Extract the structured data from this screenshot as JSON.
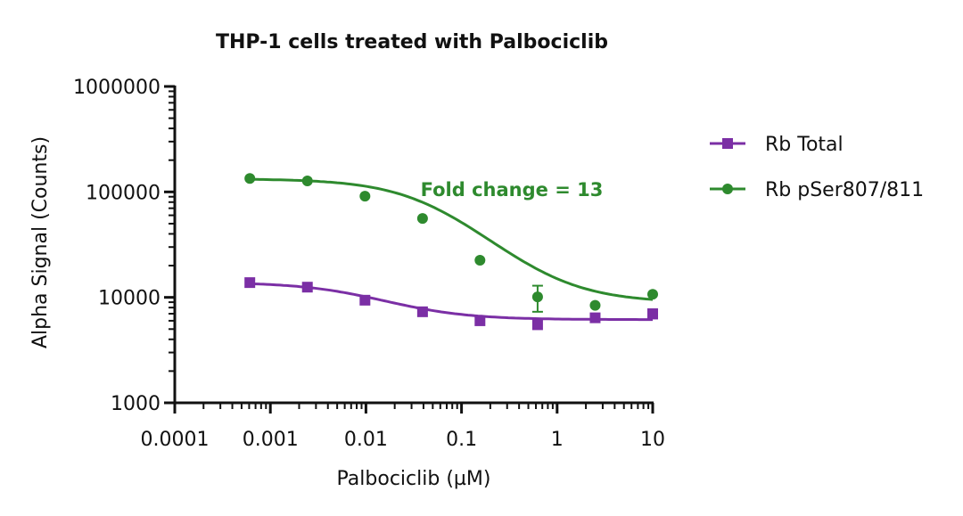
{
  "chart_data": {
    "type": "scatter",
    "title": "THP-1 cells treated with Palbociclib",
    "xlabel": "Palbociclib (µM)",
    "ylabel": "Alpha Signal (Counts)",
    "xscale": "log",
    "yscale": "log",
    "xlim": [
      0.0001,
      10
    ],
    "ylim": [
      1000,
      1000000
    ],
    "xticks": [
      {
        "value": 0.0001,
        "label": "0.0001"
      },
      {
        "value": 0.001,
        "label": "0.001"
      },
      {
        "value": 0.01,
        "label": "0.01"
      },
      {
        "value": 0.1,
        "label": "0.1"
      },
      {
        "value": 1,
        "label": "1"
      },
      {
        "value": 10,
        "label": "10"
      }
    ],
    "yticks": [
      {
        "value": 1000,
        "label": "1000"
      },
      {
        "value": 10000,
        "label": "10000"
      },
      {
        "value": 100000,
        "label": "100000"
      },
      {
        "value": 1000000,
        "label": "1000000"
      }
    ],
    "grid": false,
    "legend_position": "right",
    "series": [
      {
        "name": "Rb Total",
        "color": "#7b2fa5",
        "marker": "square",
        "x": [
          0.00061,
          0.00244,
          0.00977,
          0.0391,
          0.156,
          0.625,
          2.5,
          10
        ],
        "y": [
          13800,
          12500,
          9400,
          7300,
          6000,
          5500,
          6400,
          7000
        ],
        "err": [
          0,
          0,
          0,
          0,
          0,
          0,
          0,
          700
        ],
        "fit": {
          "top": 13900,
          "bottom": 6150,
          "ic50": 0.0105,
          "hill": 1.0
        }
      },
      {
        "name": "Rb pSer807/811",
        "color": "#2e8a2e",
        "marker": "circle",
        "x": [
          0.00061,
          0.00244,
          0.00977,
          0.0391,
          0.156,
          0.625,
          2.5,
          10
        ],
        "y": [
          134000,
          127000,
          91000,
          56000,
          22500,
          10100,
          8400,
          10700
        ],
        "err": [
          0,
          0,
          0,
          0,
          0,
          2800,
          0,
          0
        ],
        "fit": {
          "top": 133000,
          "bottom": 8900,
          "ic50": 0.052,
          "hill": 1.0
        }
      }
    ],
    "annotations": [
      {
        "text": "Fold change = 13",
        "color": "#2e8a2e"
      }
    ]
  }
}
